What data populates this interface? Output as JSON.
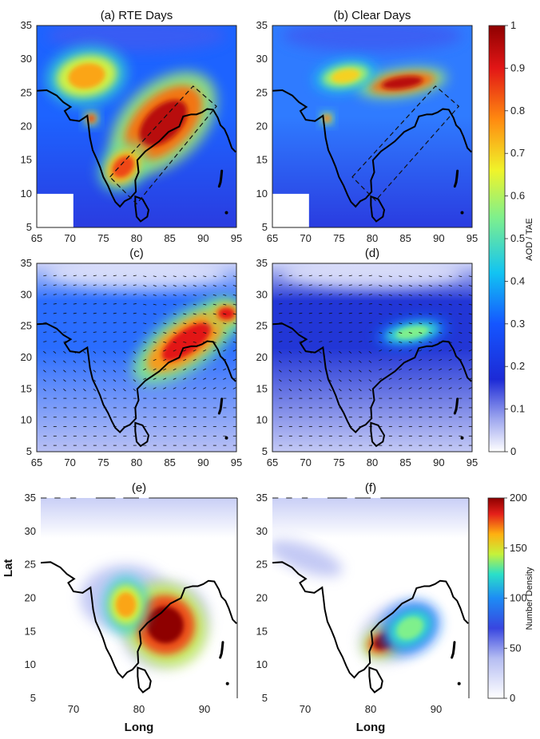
{
  "chart_data": [
    {
      "type": "heatmap",
      "panel": "a",
      "title": "(a) RTE Days",
      "x_ticks": [
        65,
        70,
        75,
        80,
        85,
        90,
        95
      ],
      "y_ticks": [
        5,
        10,
        15,
        20,
        25,
        30,
        35
      ],
      "xlim": [
        65,
        95
      ],
      "ylim": [
        5,
        35
      ],
      "colorbar": "AOD / TAE",
      "box": [
        [
          76,
          12.5
        ],
        [
          88.5,
          26
        ],
        [
          92,
          23
        ],
        [
          80,
          8.5
        ]
      ],
      "features": [
        {
          "kind": "high",
          "lon": 84,
          "lat": 20.5,
          "value": 0.95,
          "rlon": 7,
          "rlat": 4,
          "rot": 43
        },
        {
          "kind": "high",
          "lon": 78,
          "lat": 14,
          "value": 0.85,
          "rlon": 3,
          "rlat": 2.2,
          "rot": 45
        },
        {
          "kind": "high",
          "lon": 72.5,
          "lat": 27.5,
          "value": 0.75,
          "rlon": 4.5,
          "rlat": 3,
          "rot": 10
        },
        {
          "kind": "high",
          "lon": 73.2,
          "lat": 21.2,
          "value": 0.85,
          "rlon": 0.8,
          "rlat": 0.8,
          "rot": 0
        }
      ]
    },
    {
      "type": "heatmap",
      "panel": "b",
      "title": "(b) Clear Days",
      "x_ticks": [
        65,
        70,
        75,
        80,
        85,
        90,
        95
      ],
      "y_ticks": [
        5,
        10,
        15,
        20,
        25,
        30,
        35
      ],
      "xlim": [
        65,
        95
      ],
      "ylim": [
        5,
        35
      ],
      "colorbar": "AOD / TAE",
      "box": [
        [
          77,
          12.5
        ],
        [
          89.5,
          26
        ],
        [
          93,
          23
        ],
        [
          80.5,
          9
        ]
      ],
      "features": [
        {
          "kind": "high",
          "lon": 84.5,
          "lat": 26.5,
          "value": 0.95,
          "rlon": 5,
          "rlat": 1.4,
          "rot": 8
        },
        {
          "kind": "high",
          "lon": 76,
          "lat": 27.5,
          "value": 0.7,
          "rlon": 3.5,
          "rlat": 1.6,
          "rot": 10
        },
        {
          "kind": "high",
          "lon": 73.2,
          "lat": 21.2,
          "value": 0.8,
          "rlon": 0.7,
          "rlat": 0.7,
          "rot": 0
        }
      ]
    },
    {
      "type": "heatmap",
      "panel": "c",
      "title": "(c)",
      "x_ticks": [
        65,
        70,
        75,
        80,
        85,
        90,
        95
      ],
      "y_ticks": [
        5,
        10,
        15,
        20,
        25,
        30,
        35
      ],
      "xlim": [
        65,
        95
      ],
      "ylim": [
        5,
        35
      ],
      "colorbar": "AOD / TAE",
      "wind_vectors": true,
      "features": [
        {
          "kind": "high",
          "lon": 87.5,
          "lat": 22.5,
          "value": 0.9,
          "rlon": 7,
          "rlat": 3,
          "rot": 35
        },
        {
          "kind": "high",
          "lon": 93.5,
          "lat": 27,
          "value": 0.9,
          "rlon": 2,
          "rlat": 1.5,
          "rot": 0
        }
      ]
    },
    {
      "type": "heatmap",
      "panel": "d",
      "title": "(d)",
      "x_ticks": [
        65,
        70,
        75,
        80,
        85,
        90,
        95
      ],
      "y_ticks": [
        5,
        10,
        15,
        20,
        25,
        30,
        35
      ],
      "xlim": [
        65,
        95
      ],
      "ylim": [
        5,
        35
      ],
      "colorbar": "AOD / TAE",
      "wind_vectors": true,
      "features": [
        {
          "kind": "high",
          "lon": 86,
          "lat": 24,
          "value": 0.55,
          "rlon": 4,
          "rlat": 1.5,
          "rot": 10
        }
      ]
    },
    {
      "type": "heatmap",
      "panel": "e",
      "title": "(e)",
      "xlabel": "Long",
      "ylabel": "Lat",
      "x_ticks": [
        70,
        80,
        90
      ],
      "y_ticks": [
        5,
        10,
        15,
        20,
        25,
        30,
        35
      ],
      "xlim": [
        65,
        95
      ],
      "ylim": [
        5,
        35
      ],
      "colorbar": "Number Density",
      "features": [
        {
          "kind": "high",
          "lon": 84,
          "lat": 16,
          "value": 200,
          "rlon": 4.5,
          "rlat": 4.5,
          "rot": 40
        },
        {
          "kind": "high",
          "lon": 78,
          "lat": 19,
          "value": 150,
          "rlon": 2.5,
          "rlat": 3,
          "rot": 0
        }
      ]
    },
    {
      "type": "heatmap",
      "panel": "f",
      "title": "(f)",
      "xlabel": "Long",
      "x_ticks": [
        70,
        80,
        90
      ],
      "y_ticks": [
        5,
        10,
        15,
        20,
        25,
        30,
        35
      ],
      "xlim": [
        65,
        95
      ],
      "ylim": [
        5,
        35
      ],
      "colorbar": "Number Density",
      "features": [
        {
          "kind": "high",
          "lon": 82,
          "lat": 13.5,
          "value": 200,
          "rlon": 2.5,
          "rlat": 1.6,
          "rot": 25
        },
        {
          "kind": "high",
          "lon": 86,
          "lat": 15.5,
          "value": 110,
          "rlon": 3.5,
          "rlat": 2.5,
          "rot": 30
        }
      ]
    }
  ],
  "colorbars": [
    {
      "label": "AOD / TAE",
      "ticks": [
        "0",
        "0.1",
        "0.2",
        "0.3",
        "0.4",
        "0.5",
        "0.6",
        "0.7",
        "0.8",
        "0.9",
        "1"
      ],
      "range": [
        0,
        1
      ]
    },
    {
      "label": "Number Density",
      "ticks": [
        "0",
        "50",
        "100",
        "150",
        "200"
      ],
      "range": [
        0,
        200
      ]
    }
  ]
}
